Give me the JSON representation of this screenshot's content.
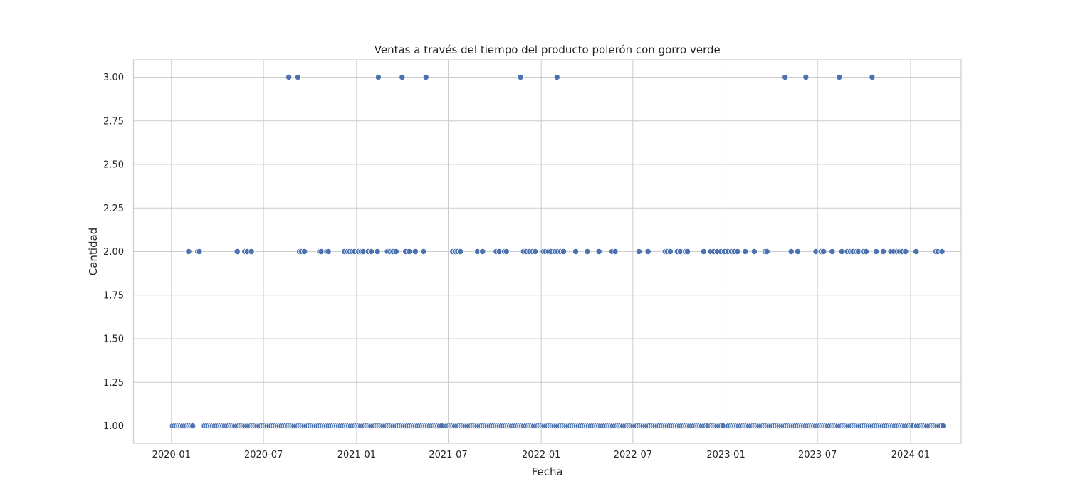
{
  "chart_data": {
    "type": "scatter",
    "title": "Ventas a través del tiempo del producto polerón con gorro verde",
    "xlabel": "Fecha",
    "ylabel": "Cantidad",
    "xlim": [
      "2019-10-18",
      "2024-04-10"
    ],
    "ylim": [
      0.9,
      3.1
    ],
    "x_ticks": [
      "2020-01",
      "2020-07",
      "2021-01",
      "2021-07",
      "2022-01",
      "2022-07",
      "2023-01",
      "2023-07",
      "2024-01"
    ],
    "y_ticks": [
      "1.00",
      "1.25",
      "1.50",
      "1.75",
      "2.00",
      "2.25",
      "2.50",
      "2.75",
      "3.00"
    ],
    "grid": true,
    "marker_color": "#4c72b0",
    "series": [
      {
        "points_y3": [
          "2020-08-20",
          "2020-09-07",
          "2021-02-13",
          "2021-04-01",
          "2021-05-18",
          "2021-11-21",
          "2022-02-01",
          "2023-04-28",
          "2023-06-08",
          "2023-08-13",
          "2023-10-17"
        ],
        "points_y2": [
          "2020-02-04",
          "2020-02-22",
          "2020-02-25",
          "2020-05-10",
          "2020-05-25",
          "2020-05-30",
          "2020-06-07",
          "2020-09-10",
          "2020-09-14",
          "2020-09-20",
          "2020-10-20",
          "2020-10-23",
          "2020-11-03",
          "2020-11-06",
          "2020-12-08",
          "2020-12-14",
          "2020-12-18",
          "2020-12-23",
          "2020-12-28",
          "2021-01-05",
          "2021-01-10",
          "2021-01-14",
          "2021-01-24",
          "2021-01-30",
          "2021-02-11",
          "2021-03-03",
          "2021-03-08",
          "2021-03-14",
          "2021-03-20",
          "2021-04-08",
          "2021-04-15",
          "2021-04-27",
          "2021-05-13",
          "2021-07-10",
          "2021-07-15",
          "2021-07-20",
          "2021-07-25",
          "2021-08-28",
          "2021-09-07",
          "2021-10-04",
          "2021-10-10",
          "2021-10-20",
          "2021-10-24",
          "2021-11-27",
          "2021-12-02",
          "2021-12-09",
          "2021-12-15",
          "2021-12-20",
          "2022-01-05",
          "2022-01-09",
          "2022-01-15",
          "2022-01-20",
          "2022-01-28",
          "2022-02-02",
          "2022-02-08",
          "2022-02-14",
          "2022-03-10",
          "2022-04-02",
          "2022-04-25",
          "2022-05-21",
          "2022-05-27",
          "2022-07-13",
          "2022-07-31",
          "2022-09-03",
          "2022-09-07",
          "2022-09-13",
          "2022-09-27",
          "2022-10-03",
          "2022-10-13",
          "2022-10-17",
          "2022-11-18",
          "2022-12-02",
          "2022-12-08",
          "2022-12-15",
          "2022-12-22",
          "2022-12-29",
          "2023-01-05",
          "2023-01-12",
          "2023-01-18",
          "2023-01-24",
          "2023-02-08",
          "2023-02-26",
          "2023-03-19",
          "2023-03-23",
          "2023-05-10",
          "2023-05-23",
          "2023-06-28",
          "2023-07-08",
          "2023-07-13",
          "2023-07-30",
          "2023-08-18",
          "2023-08-29",
          "2023-09-04",
          "2023-09-09",
          "2023-09-16",
          "2023-09-20",
          "2023-09-30",
          "2023-10-05",
          "2023-10-25",
          "2023-11-08",
          "2023-11-23",
          "2023-11-29",
          "2023-12-05",
          "2023-12-10",
          "2023-12-15",
          "2023-12-22",
          "2024-01-12",
          "2024-02-20",
          "2024-02-24",
          "2024-03-03"
        ],
        "points_y1_ranges": [
          [
            "2020-01-03",
            "2020-02-15"
          ],
          [
            "2020-03-06",
            "2020-08-17"
          ],
          [
            "2020-08-22",
            "2021-06-20"
          ],
          [
            "2021-06-28",
            "2022-11-26"
          ],
          [
            "2022-12-02",
            "2022-12-27"
          ],
          [
            "2023-01-06",
            "2024-01-08"
          ],
          [
            "2024-01-13",
            "2024-03-05"
          ]
        ],
        "y1_step_days": 4
      }
    ]
  }
}
